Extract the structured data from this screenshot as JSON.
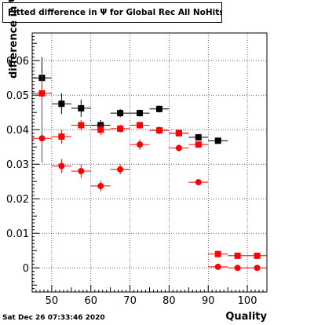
{
  "chart_data": {
    "type": "scatter",
    "title": "Fitted difference in  Ψ  for Global Rec All NoHits",
    "xlabel": "Quality",
    "ylabel": "difference in  Ψ",
    "xlim": [
      45,
      105
    ],
    "ylim": [
      -0.007,
      0.068
    ],
    "x_ticks": [
      50,
      60,
      70,
      80,
      90,
      100
    ],
    "y_ticks": [
      0,
      0.01,
      0.02,
      0.03,
      0.04,
      0.05,
      0.06
    ],
    "y_tick_labels": [
      "0",
      "0.01",
      "0.02",
      "0.03",
      "0.04",
      "0.05",
      "0.06"
    ],
    "grid": true,
    "series": [
      {
        "marker": "square",
        "color": "#000000",
        "points": [
          {
            "x": 47.5,
            "y": 0.055,
            "yerr": 0.006
          },
          {
            "x": 52.5,
            "y": 0.0475,
            "yerr": 0.003
          },
          {
            "x": 57.5,
            "y": 0.0462,
            "yerr": 0.0025
          },
          {
            "x": 62.5,
            "y": 0.0413,
            "yerr": 0.0015
          },
          {
            "x": 67.5,
            "y": 0.0448,
            "yerr": 0.0012
          },
          {
            "x": 72.5,
            "y": 0.0448,
            "yerr": 0.001
          },
          {
            "x": 77.5,
            "y": 0.046,
            "yerr": 0.001
          },
          {
            "x": 82.5,
            "y": 0.039,
            "yerr": 0.0008
          },
          {
            "x": 87.5,
            "y": 0.0378,
            "yerr": 0.0006
          },
          {
            "x": 92.5,
            "y": 0.0368,
            "yerr": 0.0005
          }
        ]
      },
      {
        "marker": "square",
        "color": "#ff0000",
        "points": [
          {
            "x": 47.5,
            "y": 0.0505,
            "yerr": 0.006
          },
          {
            "x": 52.5,
            "y": 0.038,
            "yerr": 0.002
          },
          {
            "x": 57.5,
            "y": 0.0413,
            "yerr": 0.0015
          },
          {
            "x": 62.5,
            "y": 0.04,
            "yerr": 0.0015
          },
          {
            "x": 67.5,
            "y": 0.0403,
            "yerr": 0.0012
          },
          {
            "x": 72.5,
            "y": 0.0413,
            "yerr": 0.001
          },
          {
            "x": 77.5,
            "y": 0.0398,
            "yerr": 0.001
          },
          {
            "x": 82.5,
            "y": 0.039,
            "yerr": 0.0008
          },
          {
            "x": 87.5,
            "y": 0.0357,
            "yerr": 0.0006
          },
          {
            "x": 92.5,
            "y": 0.004,
            "yerr": 0.0004
          },
          {
            "x": 97.5,
            "y": 0.0035,
            "yerr": 0.0004
          },
          {
            "x": 102.5,
            "y": 0.0035,
            "yerr": 0.0004
          }
        ]
      },
      {
        "marker": "circle",
        "color": "#ff0000",
        "points": [
          {
            "x": 47.5,
            "y": 0.0375,
            "yerr": 0.007
          },
          {
            "x": 52.5,
            "y": 0.0295,
            "yerr": 0.002
          },
          {
            "x": 57.5,
            "y": 0.028,
            "yerr": 0.002
          },
          {
            "x": 62.5,
            "y": 0.0237,
            "yerr": 0.0015
          },
          {
            "x": 67.5,
            "y": 0.0285,
            "yerr": 0.0015
          },
          {
            "x": 72.5,
            "y": 0.0357,
            "yerr": 0.0015
          },
          {
            "x": 77.5,
            "y": 0.0398,
            "yerr": 0.0012
          },
          {
            "x": 82.5,
            "y": 0.0347,
            "yerr": 0.001
          },
          {
            "x": 87.5,
            "y": 0.0248,
            "yerr": 0.0006
          },
          {
            "x": 92.5,
            "y": 0.0003,
            "yerr": 0.0003
          },
          {
            "x": 97.5,
            "y": 0.0,
            "yerr": 0.0003
          },
          {
            "x": 102.5,
            "y": 0.0,
            "yerr": 0.0003
          }
        ]
      }
    ]
  },
  "footer": {
    "timestamp": "Sat Dec 26 07:33:46 2020"
  }
}
